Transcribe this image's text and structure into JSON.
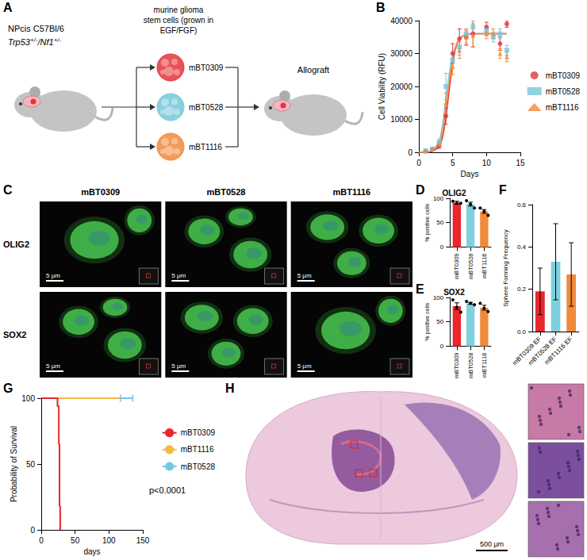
{
  "diagram": {
    "panel": "A",
    "host": "NPcis C57Bl/6",
    "genotype": [
      {
        "text": "Trp53"
      },
      {
        "text": "+/-",
        "sup": true
      },
      {
        "text": "/Nf1"
      },
      {
        "text": "+/-",
        "sup": true
      }
    ],
    "cells_text": [
      "murine glioma",
      "stem cells (grown in",
      "EGF/FGF)"
    ],
    "cell_lines": [
      {
        "name": "mBT0309",
        "color": "#e4353a"
      },
      {
        "name": "mBT0528",
        "color": "#76c7d9"
      },
      {
        "name": "mBT1116",
        "color": "#f28a3c"
      }
    ],
    "target": "Allograft"
  },
  "micrographs": {
    "panel": "C",
    "columns": [
      "mBT0309",
      "mBT0528",
      "mBT1116"
    ],
    "rows": [
      "OLIG2",
      "SOX2"
    ],
    "scale_bar": "5 μm"
  },
  "histology": {
    "panel": "H",
    "scale_bar": "500 μm"
  },
  "chart_data": [
    {
      "panel": "B",
      "type": "scatter",
      "x_label": "Days",
      "y_label": "Cell Viability (RFU)",
      "xlim": [
        0,
        15
      ],
      "xticks": [
        0,
        5,
        10,
        15
      ],
      "ylim": [
        0,
        40000
      ],
      "yticks": [
        0,
        10000,
        20000,
        30000,
        40000
      ],
      "grid": false,
      "legend": "right",
      "x": [
        1,
        2,
        3,
        4,
        5,
        6,
        7,
        8,
        10,
        11,
        12,
        13
      ],
      "series": [
        {
          "name": "mBT0309",
          "color": "#e4353a",
          "marker": "circle",
          "values": [
            300,
            900,
            2000,
            11000,
            30000,
            34500,
            35000,
            36000,
            38000,
            null,
            33000,
            39000
          ],
          "errors": [
            200,
            300,
            800,
            2500,
            3000,
            3000,
            2500,
            4000,
            1500,
            null,
            2000,
            1000
          ],
          "fit": {
            "x": [
              0,
              1,
              2,
              3,
              3.5,
              4,
              4.5,
              5,
              5.5,
              6,
              7,
              8,
              10,
              13
            ],
            "values": [
              0,
              50,
              300,
              1800,
              4500,
              10500,
              19000,
              27000,
              32000,
              34500,
              35800,
              36000,
              36000,
              36000
            ]
          }
        },
        {
          "name": "mBT0528",
          "color": "#76c7d9",
          "marker": "square",
          "values": [
            500,
            1000,
            3000,
            20000,
            28000,
            32000,
            36000,
            38000,
            37000,
            35000,
            36000,
            31000
          ],
          "errors": [
            200,
            300,
            1000,
            4000,
            2500,
            2500,
            1500,
            2000,
            1500,
            1500,
            1500,
            1500
          ],
          "fit": {
            "x": [
              0,
              1,
              2,
              3,
              3.5,
              4,
              4.5,
              5,
              5.5,
              6,
              7,
              8,
              10,
              13
            ],
            "values": [
              0,
              100,
              600,
              3500,
              8500,
              16000,
              24000,
              29500,
              32500,
              34500,
              35800,
              36000,
              36000,
              36000
            ]
          }
        },
        {
          "name": "mBT1116",
          "color": "#f28a3c",
          "marker": "triangle",
          "values": [
            400,
            900,
            2500,
            15000,
            26000,
            31000,
            35000,
            35500,
            36000,
            36000,
            30000,
            29000
          ],
          "errors": [
            200,
            300,
            800,
            3000,
            2500,
            2500,
            2000,
            3500,
            1500,
            1500,
            1500,
            1500
          ],
          "fit": {
            "x": [
              0,
              1,
              2,
              3,
              3.5,
              4,
              4.5,
              5,
              5.5,
              6,
              7,
              8,
              10,
              13
            ],
            "values": [
              0,
              80,
              450,
              2600,
              6500,
              13000,
              21500,
              28000,
              32300,
              34500,
              35800,
              36000,
              36000,
              36000
            ]
          }
        }
      ]
    },
    {
      "panel": "D",
      "type": "bar",
      "title": "OLIG2",
      "y_label": "% positive cells",
      "categories": [
        "mBT0309",
        "mBT0528",
        "mBT1116"
      ],
      "colors": [
        "#e8262b",
        "#7fd0df",
        "#f08a3b"
      ],
      "values": [
        91,
        88,
        73
      ],
      "errors": [
        3,
        4,
        4
      ],
      "points": [
        [
          94,
          90,
          90
        ],
        [
          95,
          88,
          80
        ],
        [
          80,
          73,
          65
        ]
      ],
      "ylim": [
        0,
        100
      ],
      "yticks": [
        0,
        50,
        100
      ],
      "grid": false
    },
    {
      "panel": "E",
      "type": "bar",
      "title": "SOX2",
      "y_label": "% positive cells",
      "categories": [
        "mBT0309",
        "mBT0528",
        "mBT1116"
      ],
      "colors": [
        "#e8262b",
        "#7fd0df",
        "#f08a3b"
      ],
      "values": [
        82,
        88,
        79
      ],
      "errors": [
        7,
        2,
        5
      ],
      "points": [
        [
          95,
          80,
          70
        ],
        [
          92,
          88,
          85
        ],
        [
          88,
          78,
          71
        ]
      ],
      "ylim": [
        0,
        100
      ],
      "yticks": [
        0,
        50,
        100
      ],
      "grid": false
    },
    {
      "panel": "F",
      "type": "bar",
      "y_label": "Sphere Forming Frequency",
      "categories": [
        "mBT0309 EF",
        "mBT0528 EF",
        "mBT1116 EF"
      ],
      "colors": [
        "#e8262b",
        "#7fd0df",
        "#f08a3b"
      ],
      "values": [
        0.19,
        0.33,
        0.27
      ],
      "errors": [
        0.11,
        0.18,
        0.15
      ],
      "ylim": [
        0,
        0.6
      ],
      "yticks": [
        {
          "value": 0,
          "label": "0.0"
        },
        0.2,
        0.4,
        0.6
      ],
      "grid": false
    },
    {
      "panel": "G",
      "type": "survival",
      "x_label": "days",
      "y_label": "Probability of Survival",
      "xlim": [
        0,
        150
      ],
      "xticks": [
        0,
        50,
        100,
        150
      ],
      "ylim": [
        0,
        100
      ],
      "yticks": [
        0,
        50,
        100
      ],
      "grid": false,
      "legend": "right",
      "annotations": [
        "p<0.0001"
      ],
      "series": [
        {
          "name": "mBT0309",
          "color": "#e8262b",
          "x": [
            0,
            24,
            26,
            27,
            28
          ],
          "values": [
            100,
            94,
            65,
            18,
            0
          ]
        },
        {
          "name": "mBT1116",
          "color": "#f5b940",
          "x": [
            0,
            117
          ],
          "values": [
            100,
            100
          ]
        },
        {
          "name": "mBT0528",
          "color": "#78c6e6",
          "x": [
            0,
            135
          ],
          "values": [
            100,
            100
          ],
          "censored": [
            117,
            135
          ]
        }
      ]
    }
  ]
}
